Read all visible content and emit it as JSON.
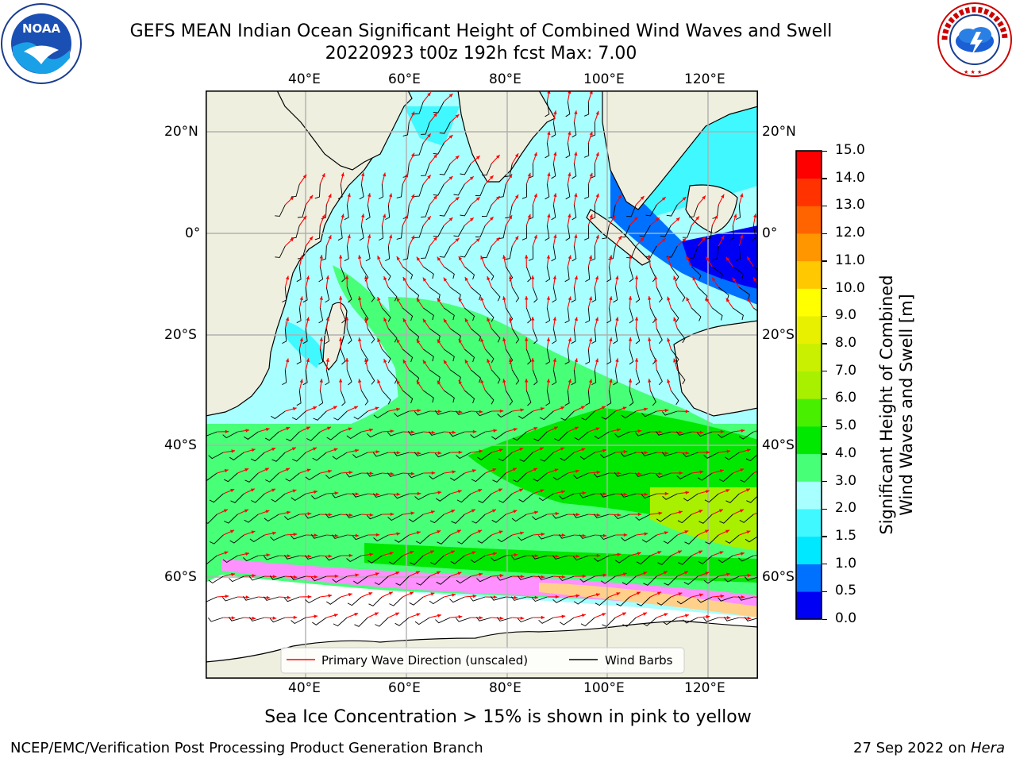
{
  "title": {
    "line1": "GEFS MEAN Indian Ocean Significant Height of Combined Wind Waves and Swell",
    "line2": "20220923 t00z 192h fcst   Max: 7.00"
  },
  "logos": {
    "left": {
      "name": "noaa-logo",
      "text": "NOAA"
    },
    "right": {
      "name": "nws-logo",
      "text": "NATIONAL WEATHER SERVICE"
    }
  },
  "map": {
    "lon_labels": [
      "40°E",
      "60°E",
      "80°E",
      "100°E",
      "120°E"
    ],
    "lat_labels": [
      "20°N",
      "0°",
      "20°S",
      "40°S",
      "60°S"
    ],
    "colors": {
      "land": "#efefdf",
      "grid": "#b0b0b0",
      "wave_arrow": "#ff0000",
      "wind_barb": "#000000"
    }
  },
  "legend": {
    "wave_label": "Primary Wave Direction (unscaled)",
    "wind_label": "Wind Barbs"
  },
  "colorbar": {
    "label_line1": "Significant Height of Combined",
    "label_line2": "Wind Waves and Swell [m]",
    "ticks": [
      "0.0",
      "0.5",
      "1.0",
      "1.5",
      "2.0",
      "3.0",
      "4.0",
      "5.0",
      "6.0",
      "7.0",
      "8.0",
      "9.0",
      "10.0",
      "11.0",
      "12.0",
      "13.0",
      "14.0",
      "15.0"
    ],
    "colors": [
      "#0000f5",
      "#0070ff",
      "#00e8ff",
      "#40f8ff",
      "#a8ffff",
      "#48ff78",
      "#00e800",
      "#48f000",
      "#a8f000",
      "#c8f000",
      "#e8f000",
      "#ffff00",
      "#ffc800",
      "#ff9600",
      "#ff6400",
      "#ff3200",
      "#ff0000"
    ]
  },
  "note": "Sea Ice Concentration > 15% is shown in pink to yellow",
  "footer": {
    "left": "NCEP/EMC/Verification Post Processing Product Generation Branch",
    "right_prefix": "27 Sep 2022 on ",
    "right_host": "Hera"
  }
}
